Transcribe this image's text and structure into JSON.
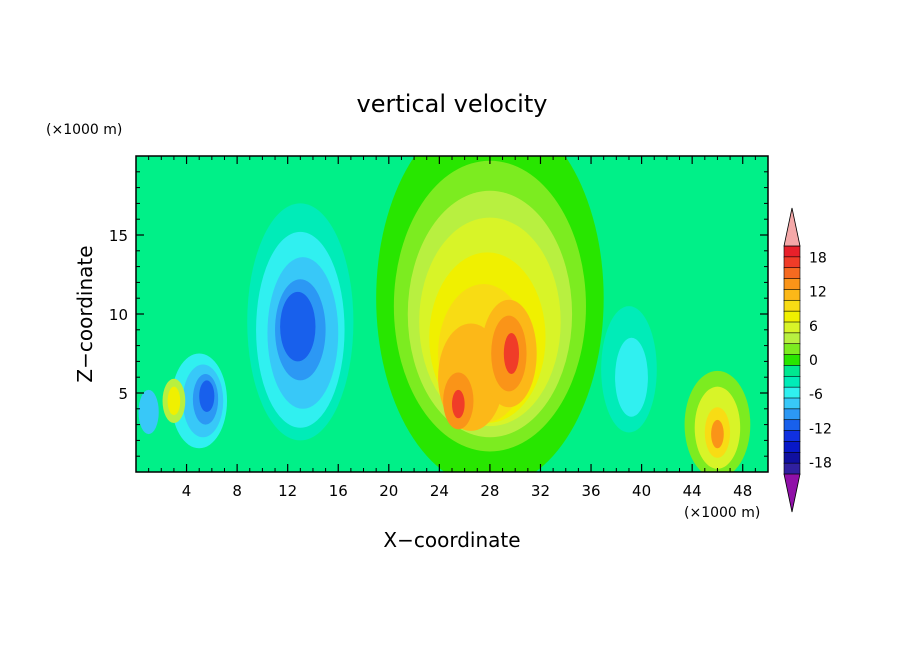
{
  "chart_data": {
    "type": "heatmap",
    "title": "vertical velocity",
    "xlabel": "X−coordinate",
    "ylabel": "Z−coordinate",
    "x_units": "(×1000 m)",
    "y_units": "(×1000 m)",
    "xlim": [
      0,
      50
    ],
    "ylim": [
      0,
      20
    ],
    "x_ticks": [
      4,
      8,
      12,
      16,
      20,
      24,
      28,
      32,
      36,
      40,
      44,
      48
    ],
    "y_ticks": [
      5,
      10,
      15
    ],
    "colorbar": {
      "labels": [
        18,
        12,
        6,
        0,
        -6,
        -12,
        -18
      ],
      "levels": [
        20,
        18,
        16,
        14,
        12,
        10,
        8,
        6,
        4,
        2,
        0,
        -2,
        -4,
        -6,
        -8,
        -10,
        -12,
        -14,
        -16,
        -18,
        -20
      ],
      "colors": [
        "#e8202a",
        "#f03c28",
        "#f66a20",
        "#fa9418",
        "#fcb818",
        "#f8dc14",
        "#f0f000",
        "#d8f428",
        "#b8f040",
        "#7cec20",
        "#28e600",
        "#00e890",
        "#00ecb8",
        "#30f0f0",
        "#38c8f8",
        "#2c98f4",
        "#1860ec",
        "#1030e0",
        "#0818c8",
        "#1010a0",
        "#3020a0"
      ],
      "over_color": "#f4a8a8",
      "under_color": "#9010a8"
    },
    "background_value_color": "#00f088",
    "cells": [
      {
        "x": 13.0,
        "z": 9.5,
        "rx": 4.2,
        "rz": 7.5,
        "level": -4,
        "color": "#00ecb8"
      },
      {
        "x": 13.0,
        "z": 9.0,
        "rx": 3.5,
        "rz": 6.2,
        "level": -6,
        "color": "#30f0f0"
      },
      {
        "x": 13.2,
        "z": 8.8,
        "rx": 2.8,
        "rz": 4.8,
        "level": -8,
        "color": "#38c8f8"
      },
      {
        "x": 13.0,
        "z": 9.0,
        "rx": 2.0,
        "rz": 3.2,
        "level": -10,
        "color": "#2c98f4"
      },
      {
        "x": 12.8,
        "z": 9.2,
        "rx": 1.4,
        "rz": 2.2,
        "level": -12,
        "color": "#1860ec"
      },
      {
        "x": 5.0,
        "z": 4.5,
        "rx": 2.2,
        "rz": 3.0,
        "level": -6,
        "color": "#30f0f0"
      },
      {
        "x": 5.3,
        "z": 4.5,
        "rx": 1.6,
        "rz": 2.3,
        "level": -8,
        "color": "#38c8f8"
      },
      {
        "x": 5.5,
        "z": 4.6,
        "rx": 1.0,
        "rz": 1.6,
        "level": -10,
        "color": "#2c98f4"
      },
      {
        "x": 5.6,
        "z": 4.8,
        "rx": 0.6,
        "rz": 1.0,
        "level": -12,
        "color": "#1860ec"
      },
      {
        "x": 3.0,
        "z": 4.5,
        "rx": 0.9,
        "rz": 1.4,
        "level": 4,
        "color": "#b8f040"
      },
      {
        "x": 3.0,
        "z": 4.5,
        "rx": 0.5,
        "rz": 0.9,
        "level": 8,
        "color": "#f0f000"
      },
      {
        "x": 1.0,
        "z": 3.8,
        "rx": 0.8,
        "rz": 1.4,
        "level": -8,
        "color": "#38c8f8"
      },
      {
        "x": 39.0,
        "z": 6.5,
        "rx": 2.2,
        "rz": 4.0,
        "level": -4,
        "color": "#00ecb8"
      },
      {
        "x": 39.2,
        "z": 6.0,
        "rx": 1.3,
        "rz": 2.5,
        "level": -6,
        "color": "#30f0f0"
      },
      {
        "x": 28.0,
        "z": 11.0,
        "rx": 9.0,
        "rz": 12.0,
        "level": 0,
        "color": "#28e600"
      },
      {
        "x": 28.0,
        "z": 10.5,
        "rx": 7.6,
        "rz": 9.2,
        "level": 2,
        "color": "#7cec20"
      },
      {
        "x": 28.0,
        "z": 10.0,
        "rx": 6.5,
        "rz": 7.8,
        "level": 4,
        "color": "#b8f040"
      },
      {
        "x": 28.0,
        "z": 9.5,
        "rx": 5.6,
        "rz": 6.6,
        "level": 6,
        "color": "#d8f428"
      },
      {
        "x": 27.8,
        "z": 8.5,
        "rx": 4.6,
        "rz": 5.4,
        "level": 8,
        "color": "#f0f000"
      },
      {
        "x": 27.5,
        "z": 7.5,
        "rx": 3.6,
        "rz": 4.4,
        "level": 10,
        "color": "#f8dc14"
      },
      {
        "x": 26.5,
        "z": 6.0,
        "rx": 2.6,
        "rz": 3.4,
        "level": 12,
        "color": "#fcb818"
      },
      {
        "x": 29.5,
        "z": 7.5,
        "rx": 2.2,
        "rz": 3.4,
        "level": 12,
        "color": "#fcb818"
      },
      {
        "x": 25.5,
        "z": 4.5,
        "rx": 1.2,
        "rz": 1.8,
        "level": 14,
        "color": "#fa9418"
      },
      {
        "x": 29.5,
        "z": 7.5,
        "rx": 1.4,
        "rz": 2.4,
        "level": 14,
        "color": "#fa9418"
      },
      {
        "x": 25.5,
        "z": 4.3,
        "rx": 0.5,
        "rz": 0.9,
        "level": 18,
        "color": "#f03c28"
      },
      {
        "x": 29.7,
        "z": 7.5,
        "rx": 0.6,
        "rz": 1.3,
        "level": 18,
        "color": "#f03c28"
      },
      {
        "x": 46.0,
        "z": 3.0,
        "rx": 2.6,
        "rz": 3.4,
        "level": 2,
        "color": "#7cec20"
      },
      {
        "x": 46.0,
        "z": 2.8,
        "rx": 1.8,
        "rz": 2.6,
        "level": 6,
        "color": "#d8f428"
      },
      {
        "x": 46.0,
        "z": 2.5,
        "rx": 1.0,
        "rz": 1.6,
        "level": 10,
        "color": "#f8dc14"
      },
      {
        "x": 46.0,
        "z": 2.4,
        "rx": 0.5,
        "rz": 0.9,
        "level": 14,
        "color": "#fa9418"
      }
    ]
  }
}
